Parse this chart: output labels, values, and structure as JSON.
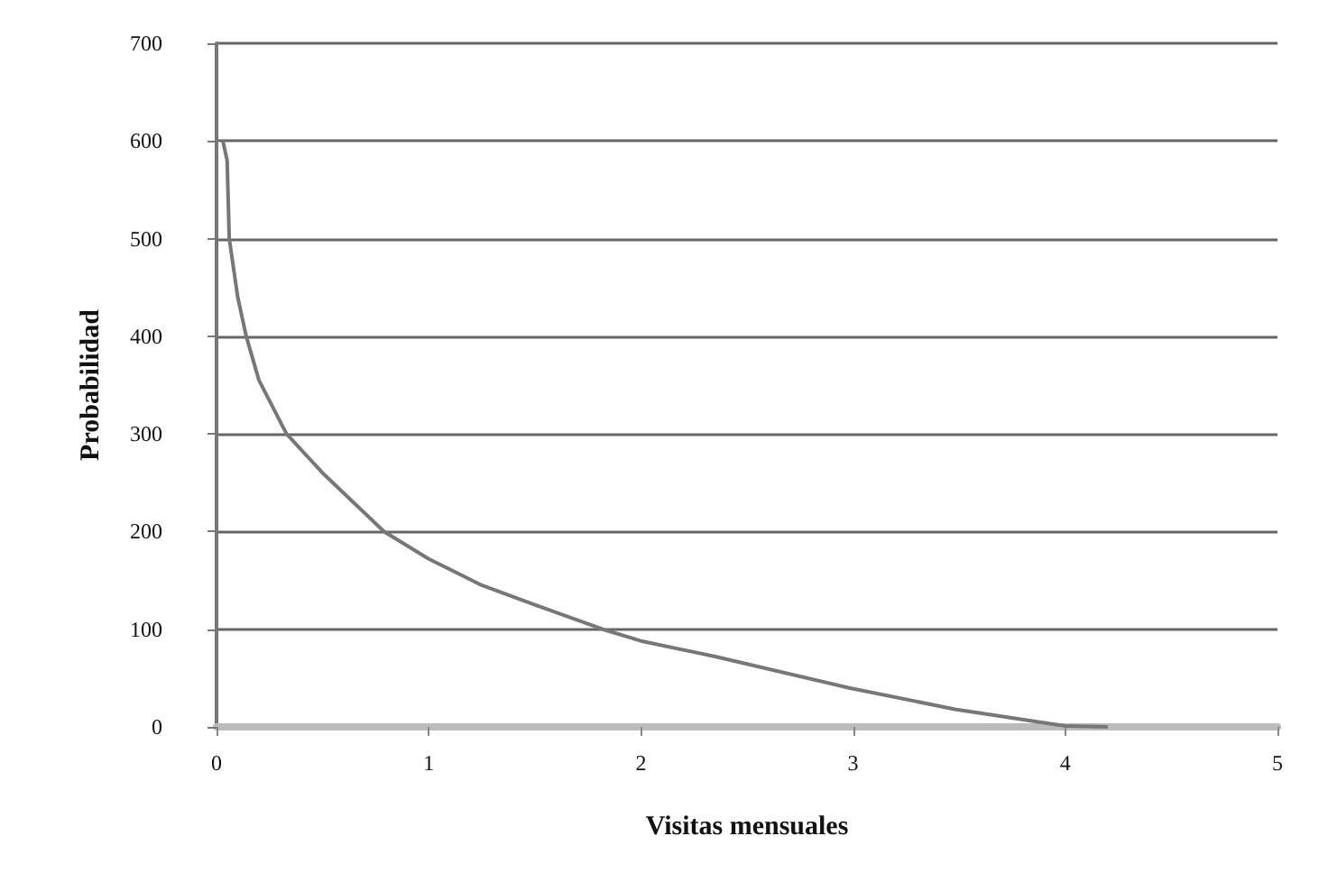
{
  "chart_data": {
    "type": "line",
    "xlabel": "Visitas mensuales",
    "ylabel": "Probabilidad",
    "series": [
      {
        "color": "#777777",
        "x": [
          0.03,
          0.05,
          0.06,
          0.1,
          0.14,
          0.2,
          0.33,
          0.5,
          0.79,
          1,
          1.25,
          1.5,
          1.82,
          2,
          2.35,
          2.98,
          3.48,
          4,
          4.2
        ],
        "values": [
          600,
          580,
          500,
          440,
          400,
          355,
          300,
          260,
          200,
          172,
          145,
          125,
          100,
          88,
          72,
          40,
          18,
          1,
          0
        ]
      }
    ],
    "xlim": [
      0,
      5
    ],
    "xticks": [
      0,
      1,
      2,
      3,
      4,
      5
    ],
    "ylim": [
      0,
      700
    ],
    "yticks": [
      0,
      100,
      200,
      300,
      400,
      500,
      600,
      700
    ],
    "grid": "y",
    "marker": "none",
    "line_style": "solid"
  }
}
